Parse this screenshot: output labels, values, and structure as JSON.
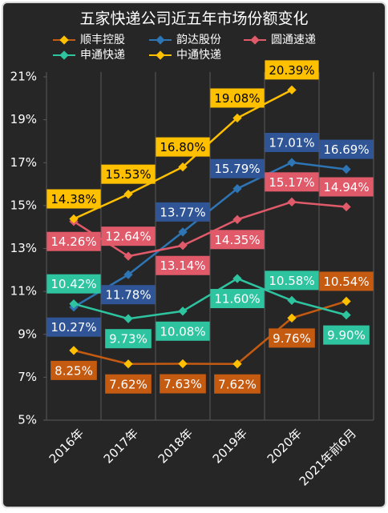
{
  "chart_data": {
    "type": "line",
    "title": "五家快递公司近五年市场份额变化",
    "categories": [
      "2016年",
      "2017年",
      "2018年",
      "2019年",
      "2020年",
      "2021年前6月"
    ],
    "series": [
      {
        "name": "顺丰控股",
        "color": "#c55a11",
        "values": [
          8.25,
          7.62,
          7.63,
          7.62,
          9.76,
          10.54
        ],
        "value_labels": [
          "8.25%",
          "7.62%",
          "7.63%",
          "7.62%",
          "9.76%",
          "10.54%"
        ]
      },
      {
        "name": "韵达股份",
        "color": "#2e75b6",
        "values": [
          10.27,
          11.78,
          13.77,
          15.79,
          17.01,
          16.69
        ],
        "value_labels": [
          "10.27%",
          "11.78%",
          "13.77%",
          "15.79%",
          "17.01%",
          "16.69%"
        ]
      },
      {
        "name": "圆通速递",
        "color": "#e05a6a",
        "values": [
          14.26,
          12.64,
          13.14,
          14.35,
          15.17,
          14.94
        ],
        "value_labels": [
          "14.26%",
          "12.64%",
          "13.14%",
          "14.35%",
          "15.17%",
          "14.94%"
        ]
      },
      {
        "name": "申通快递",
        "color": "#2ec4a0",
        "values": [
          10.42,
          9.73,
          10.08,
          11.6,
          10.58,
          9.9
        ],
        "value_labels": [
          "10.42%",
          "9.73%",
          "10.08%",
          "11.60%",
          "10.58%",
          "9.90%"
        ]
      },
      {
        "name": "中通快递",
        "color": "#ffc000",
        "values": [
          14.38,
          15.53,
          16.8,
          19.08,
          20.39,
          null
        ],
        "value_labels": [
          "14.38%",
          "15.53%",
          "16.80%",
          "19.08%",
          "20.39%",
          null
        ]
      }
    ],
    "ylim": [
      5,
      21
    ],
    "yticks": [
      {
        "value": 5,
        "label": "5%"
      },
      {
        "value": 7,
        "label": "7%"
      },
      {
        "value": 9,
        "label": "9%"
      },
      {
        "value": 11,
        "label": "11%"
      },
      {
        "value": 13,
        "label": "13%"
      },
      {
        "value": 15,
        "label": "15%"
      },
      {
        "value": 17,
        "label": "17%"
      },
      {
        "value": 19,
        "label": "19%"
      },
      {
        "value": 21,
        "label": "21%"
      }
    ],
    "legend": "top"
  }
}
